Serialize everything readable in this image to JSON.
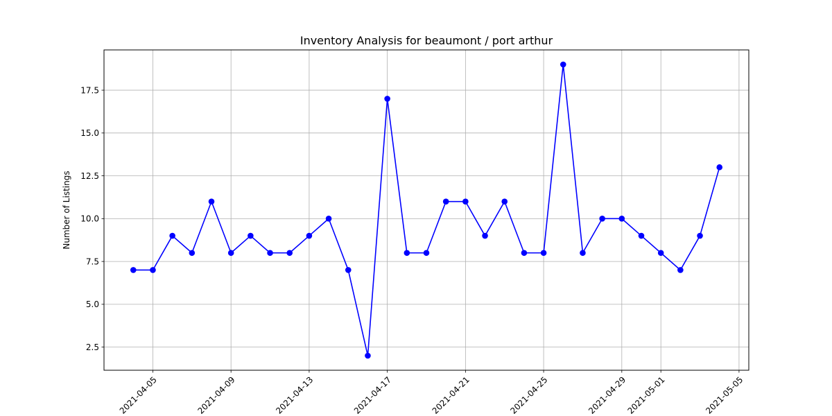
{
  "chart_data": {
    "type": "line",
    "title": "Inventory Analysis for beaumont / port arthur",
    "xlabel": "",
    "ylabel": "Number of Listings",
    "x_tick_labels": [
      "2021-04-05",
      "2021-04-09",
      "2021-04-13",
      "2021-04-17",
      "2021-04-21",
      "2021-04-25",
      "2021-04-29",
      "2021-05-01",
      "2021-05-05"
    ],
    "y_tick_labels": [
      "2.5",
      "5.0",
      "7.5",
      "10.0",
      "12.5",
      "15.0",
      "17.5"
    ],
    "xlim": [
      "2021-04-02T12:00:00",
      "2021-05-05T12:00:00"
    ],
    "ylim": [
      1.15,
      19.85
    ],
    "grid": true,
    "series_color": "#0000ff",
    "series": [
      {
        "x": [
          "2021-04-04",
          "2021-04-05",
          "2021-04-06",
          "2021-04-07",
          "2021-04-08",
          "2021-04-09",
          "2021-04-10",
          "2021-04-11",
          "2021-04-12",
          "2021-04-13",
          "2021-04-14",
          "2021-04-15",
          "2021-04-16",
          "2021-04-17",
          "2021-04-18",
          "2021-04-19",
          "2021-04-20",
          "2021-04-21",
          "2021-04-22",
          "2021-04-23",
          "2021-04-24",
          "2021-04-25",
          "2021-04-26",
          "2021-04-27",
          "2021-04-28",
          "2021-04-29",
          "2021-04-30",
          "2021-05-01",
          "2021-05-02",
          "2021-05-03",
          "2021-05-04"
        ],
        "values": [
          7,
          7,
          9,
          8,
          11,
          8,
          9,
          8,
          8,
          9,
          10,
          7,
          2,
          17,
          8,
          8,
          11,
          11,
          9,
          11,
          8,
          8,
          19,
          8,
          10,
          10,
          9,
          8,
          7,
          9,
          13
        ]
      }
    ]
  }
}
